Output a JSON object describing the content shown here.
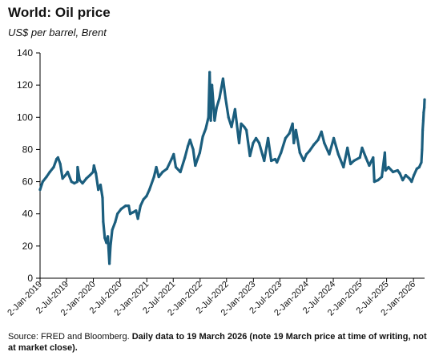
{
  "title": "World: Oil price",
  "subtitle": "US$ per barrel, Brent",
  "source": {
    "prefix": "Source: FRED and Bloomberg. ",
    "note": "Daily data to 19 March 2026 (note 19 March price at time of writing, not at market close)."
  },
  "colors": {
    "series": "#1b5e7e",
    "axis": "#000000",
    "text": "#111111"
  },
  "chart_data": {
    "type": "line",
    "title": "World: Oil price",
    "subtitle": "US$ per barrel, Brent",
    "xlabel": "",
    "ylabel": "",
    "ylim": [
      0,
      140
    ],
    "yticks": [
      0,
      20,
      40,
      60,
      80,
      100,
      120,
      140
    ],
    "xlim": [
      "2019-01-02",
      "2026-03-19"
    ],
    "xticks": [
      {
        "date": "2019-01-02",
        "label": "2-Jan-2019"
      },
      {
        "date": "2019-07-02",
        "label": "2-Jul-2019"
      },
      {
        "date": "2020-01-02",
        "label": "2-Jan-2020"
      },
      {
        "date": "2020-07-02",
        "label": "2-Jul-2020"
      },
      {
        "date": "2021-01-02",
        "label": "2-Jan-2021"
      },
      {
        "date": "2021-07-02",
        "label": "2-Jul-2021"
      },
      {
        "date": "2022-01-02",
        "label": "2-Jan-2022"
      },
      {
        "date": "2022-07-02",
        "label": "2-Jul-2022"
      },
      {
        "date": "2023-01-02",
        "label": "2-Jan-2023"
      },
      {
        "date": "2023-07-02",
        "label": "2-Jul-2023"
      },
      {
        "date": "2024-01-02",
        "label": "2-Jan-2024"
      },
      {
        "date": "2024-07-02",
        "label": "2-Jul-2024"
      },
      {
        "date": "2025-01-02",
        "label": "2-Jan-2025"
      },
      {
        "date": "2025-07-02",
        "label": "2-Jul-2025"
      },
      {
        "date": "2026-01-02",
        "label": "2-Jan-2026"
      }
    ],
    "grid": false,
    "legend": "none",
    "series": [
      {
        "points": [
          [
            "2019-01-02",
            55
          ],
          [
            "2019-01-20",
            60
          ],
          [
            "2019-02-15",
            63
          ],
          [
            "2019-03-10",
            66
          ],
          [
            "2019-04-05",
            69
          ],
          [
            "2019-04-25",
            74
          ],
          [
            "2019-05-05",
            75
          ],
          [
            "2019-05-20",
            71
          ],
          [
            "2019-06-05",
            62
          ],
          [
            "2019-06-25",
            64
          ],
          [
            "2019-07-10",
            66
          ],
          [
            "2019-08-05",
            60
          ],
          [
            "2019-08-25",
            59
          ],
          [
            "2019-09-14",
            60
          ],
          [
            "2019-09-16",
            69
          ],
          [
            "2019-09-30",
            61
          ],
          [
            "2019-10-20",
            59
          ],
          [
            "2019-11-15",
            62
          ],
          [
            "2019-12-10",
            64
          ],
          [
            "2019-12-31",
            66
          ],
          [
            "2020-01-06",
            70
          ],
          [
            "2020-01-20",
            65
          ],
          [
            "2020-02-05",
            55
          ],
          [
            "2020-02-20",
            58
          ],
          [
            "2020-03-05",
            50
          ],
          [
            "2020-03-10",
            35
          ],
          [
            "2020-03-20",
            25
          ],
          [
            "2020-03-31",
            22
          ],
          [
            "2020-04-10",
            26
          ],
          [
            "2020-04-21",
            9
          ],
          [
            "2020-04-28",
            20
          ],
          [
            "2020-05-10",
            30
          ],
          [
            "2020-05-31",
            35
          ],
          [
            "2020-06-15",
            40
          ],
          [
            "2020-07-10",
            43
          ],
          [
            "2020-08-10",
            45
          ],
          [
            "2020-08-31",
            45
          ],
          [
            "2020-09-10",
            40
          ],
          [
            "2020-10-01",
            41
          ],
          [
            "2020-10-20",
            42
          ],
          [
            "2020-11-02",
            37
          ],
          [
            "2020-11-20",
            45
          ],
          [
            "2020-12-10",
            49
          ],
          [
            "2020-12-31",
            51
          ],
          [
            "2021-01-20",
            55
          ],
          [
            "2021-02-20",
            63
          ],
          [
            "2021-03-08",
            69
          ],
          [
            "2021-03-25",
            63
          ],
          [
            "2021-04-20",
            66
          ],
          [
            "2021-05-20",
            68
          ],
          [
            "2021-06-20",
            74
          ],
          [
            "2021-07-05",
            77
          ],
          [
            "2021-07-20",
            69
          ],
          [
            "2021-08-20",
            66
          ],
          [
            "2021-09-20",
            75
          ],
          [
            "2021-10-10",
            82
          ],
          [
            "2021-10-25",
            86
          ],
          [
            "2021-11-15",
            80
          ],
          [
            "2021-11-30",
            70
          ],
          [
            "2021-12-15",
            74
          ],
          [
            "2021-12-31",
            78
          ],
          [
            "2022-01-20",
            88
          ],
          [
            "2022-02-10",
            93
          ],
          [
            "2022-02-28",
            100
          ],
          [
            "2022-03-08",
            128
          ],
          [
            "2022-03-16",
            98
          ],
          [
            "2022-03-24",
            120
          ],
          [
            "2022-04-11",
            98
          ],
          [
            "2022-04-25",
            106
          ],
          [
            "2022-05-15",
            112
          ],
          [
            "2022-06-08",
            124
          ],
          [
            "2022-06-25",
            112
          ],
          [
            "2022-07-15",
            100
          ],
          [
            "2022-08-05",
            94
          ],
          [
            "2022-08-29",
            105
          ],
          [
            "2022-09-26",
            84
          ],
          [
            "2022-10-10",
            96
          ],
          [
            "2022-10-31",
            94
          ],
          [
            "2022-11-15",
            92
          ],
          [
            "2022-12-09",
            76
          ],
          [
            "2022-12-31",
            84
          ],
          [
            "2023-01-20",
            87
          ],
          [
            "2023-02-10",
            84
          ],
          [
            "2023-03-17",
            73
          ],
          [
            "2023-04-12",
            87
          ],
          [
            "2023-05-04",
            73
          ],
          [
            "2023-05-31",
            74
          ],
          [
            "2023-06-12",
            72
          ],
          [
            "2023-07-10",
            78
          ],
          [
            "2023-08-10",
            87
          ],
          [
            "2023-09-05",
            90
          ],
          [
            "2023-09-27",
            96
          ],
          [
            "2023-10-06",
            84
          ],
          [
            "2023-10-20",
            92
          ],
          [
            "2023-11-16",
            78
          ],
          [
            "2023-12-12",
            73
          ],
          [
            "2023-12-31",
            77
          ],
          [
            "2024-01-20",
            79
          ],
          [
            "2024-02-20",
            83
          ],
          [
            "2024-03-20",
            86
          ],
          [
            "2024-04-12",
            91
          ],
          [
            "2024-05-01",
            84
          ],
          [
            "2024-06-04",
            77
          ],
          [
            "2024-07-05",
            87
          ],
          [
            "2024-08-05",
            77
          ],
          [
            "2024-09-10",
            69
          ],
          [
            "2024-10-07",
            81
          ],
          [
            "2024-10-28",
            71
          ],
          [
            "2024-11-20",
            73
          ],
          [
            "2024-12-31",
            75
          ],
          [
            "2025-01-15",
            81
          ],
          [
            "2025-02-10",
            75
          ],
          [
            "2025-03-05",
            70
          ],
          [
            "2025-04-01",
            75
          ],
          [
            "2025-04-09",
            60
          ],
          [
            "2025-05-05",
            61
          ],
          [
            "2025-05-30",
            63
          ],
          [
            "2025-06-20",
            78
          ],
          [
            "2025-06-25",
            67
          ],
          [
            "2025-07-15",
            69
          ],
          [
            "2025-08-15",
            66
          ],
          [
            "2025-09-15",
            67
          ],
          [
            "2025-10-01",
            65
          ],
          [
            "2025-10-20",
            61
          ],
          [
            "2025-11-10",
            64
          ],
          [
            "2025-12-05",
            62
          ],
          [
            "2025-12-20",
            60
          ],
          [
            "2026-01-05",
            64
          ],
          [
            "2026-01-25",
            68
          ],
          [
            "2026-02-10",
            69
          ],
          [
            "2026-02-25",
            72
          ],
          [
            "2026-03-02",
            80
          ],
          [
            "2026-03-06",
            92
          ],
          [
            "2026-03-10",
            98
          ],
          [
            "2026-03-13",
            103
          ],
          [
            "2026-03-17",
            106
          ],
          [
            "2026-03-19",
            111
          ]
        ]
      }
    ]
  }
}
